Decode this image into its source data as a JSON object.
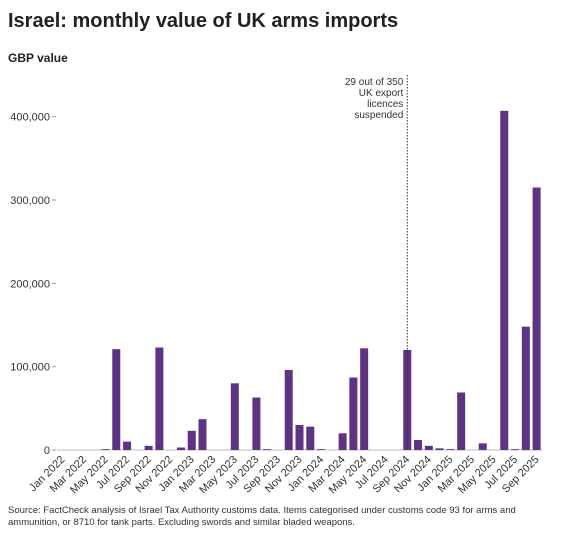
{
  "chart_data": {
    "type": "bar",
    "title": "Israel: monthly value of UK arms imports",
    "y_axis_label": "GBP value",
    "source": "Source: FactCheck analysis of Israel Tax Authority customs data. Items categorised under customs code 93 for arms and ammunition, or 8710 for tank parts. Excluding swords and similar bladed weapons.",
    "annotation": {
      "category": "Sep 2024",
      "lines": [
        "29 out of 350",
        "UK export",
        "licences",
        "suspended"
      ]
    },
    "categories": [
      "Jan 2022",
      null,
      "Mar 2022",
      null,
      "May 2022",
      null,
      "Jul 2022",
      null,
      "Sep 2022",
      null,
      "Nov 2022",
      null,
      "Jan 2023",
      null,
      "Mar 2023",
      null,
      "May 2023",
      null,
      "Jul 2023",
      null,
      "Sep 2023",
      null,
      "Nov 2023",
      null,
      "Jan 2024",
      null,
      "Mar 2024",
      null,
      "May 2024",
      null,
      "Jul 2024",
      null,
      "Sep 2024",
      null,
      "Nov 2024",
      null,
      "Jan 2025",
      null,
      "Mar 2025",
      null,
      "May 2025",
      null,
      "Jul 2025",
      null,
      "Sep 2025"
    ],
    "values": [
      0,
      0,
      0,
      0,
      1000,
      121000,
      10000,
      0,
      5000,
      123000,
      0,
      3000,
      23000,
      37000,
      0,
      0,
      80000,
      0,
      63000,
      1000,
      0,
      96000,
      30000,
      28000,
      1000,
      0,
      20000,
      87000,
      122000,
      0,
      0,
      0,
      120000,
      12000,
      5000,
      2000,
      1000,
      69000,
      0,
      8000,
      0,
      407000,
      1000,
      148000,
      315000
    ],
    "color": "#5e3384",
    "ylim": [
      0,
      450000
    ],
    "yticks": [
      0,
      {
        "value": 100000,
        "label": "100,000"
      },
      {
        "value": 200000,
        "label": "200,000"
      },
      {
        "value": 300000,
        "label": "300,000"
      },
      {
        "value": 400000,
        "label": "400,000"
      }
    ],
    "grid": false
  }
}
